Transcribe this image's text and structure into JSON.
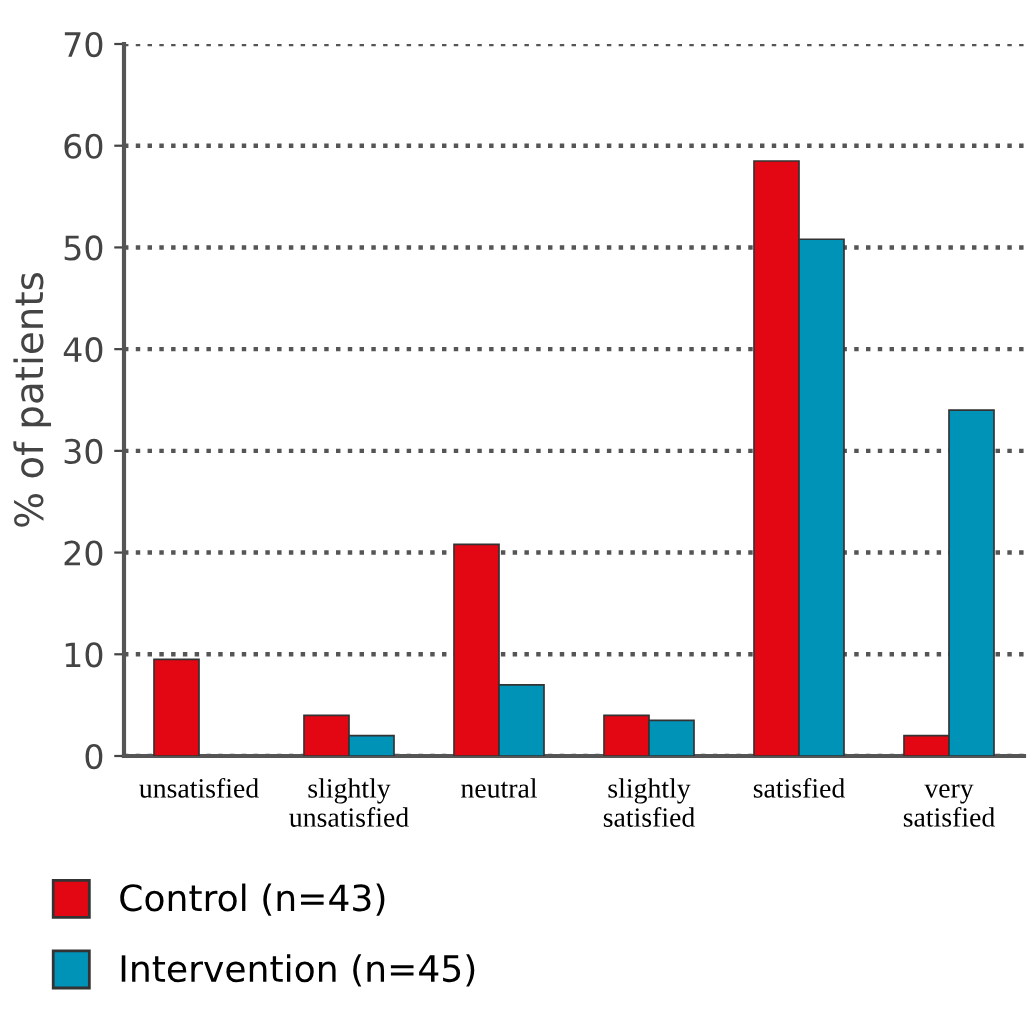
{
  "chart_data": {
    "type": "bar",
    "ylabel": "% of patients",
    "categories": [
      "unsatisfied",
      "slightly\nunsatisfied",
      "neutral",
      "slightly\nsatisfied",
      "satisfied",
      "very\nsatisfied"
    ],
    "series": [
      {
        "name": "Control (n=43)",
        "color": "#e30613",
        "values": [
          9.5,
          4,
          20.8,
          4,
          58.5,
          2
        ]
      },
      {
        "name": "Intervention (n=45)",
        "color": "#0093b8",
        "values": [
          null,
          2,
          7,
          3.5,
          50.8,
          34
        ]
      }
    ],
    "ylim": [
      0,
      70
    ],
    "yticks": [
      0,
      10,
      20,
      30,
      40,
      50,
      60,
      70
    ],
    "grid": "y",
    "line_style": "dotted",
    "legend": "bottom left"
  }
}
